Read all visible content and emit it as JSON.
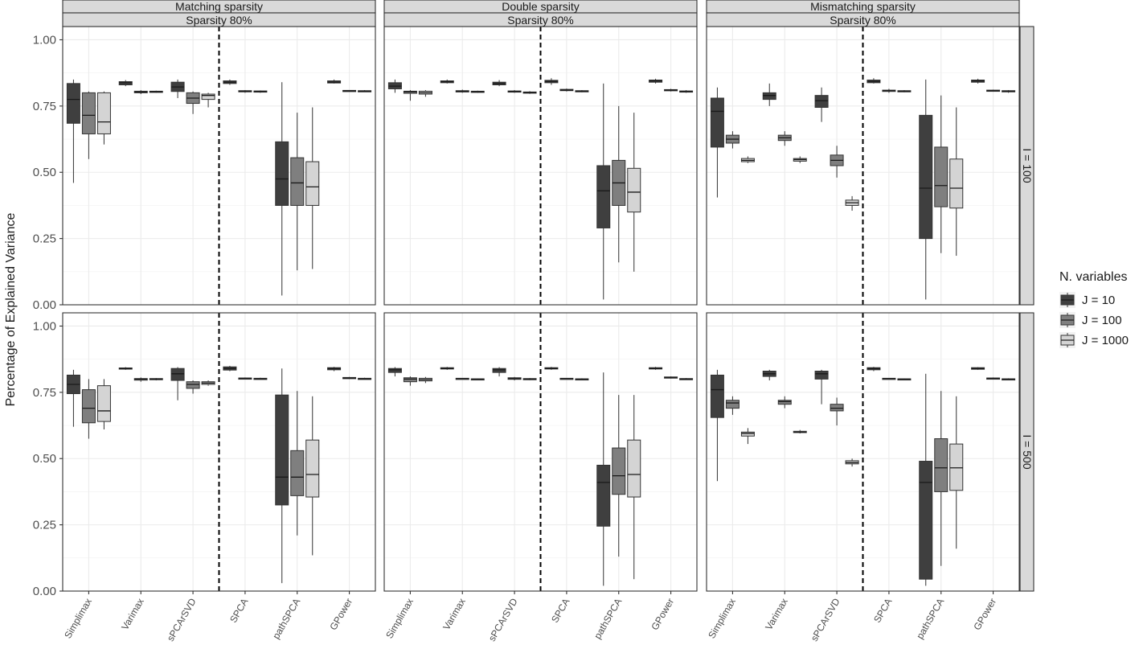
{
  "chart_data": {
    "type": "boxplot",
    "ylabel": "Percentage of Explained Variance",
    "ylim": [
      0,
      1.05
    ],
    "y_ticks": [
      "0.00",
      "0.25",
      "0.50",
      "0.75",
      "1.00"
    ],
    "y_tick_values": [
      0,
      0.25,
      0.5,
      0.75,
      1.0
    ],
    "methods": [
      "Simplimax",
      "Varimax",
      "sPCArSVD",
      "SPCA",
      "pathSPCA",
      "GPower"
    ],
    "columns": [
      {
        "label": "Matching sparsity",
        "sublabel": "Sparsity 80%"
      },
      {
        "label": "Double sparsity",
        "sublabel": "Sparsity 80%"
      },
      {
        "label": "Mismatching sparsity",
        "sublabel": "Sparsity 80%"
      }
    ],
    "rows": [
      {
        "label": "I = 100"
      },
      {
        "label": "I = 500"
      }
    ],
    "legend": {
      "title": "N. variables",
      "entries": [
        "J = 10",
        "J = 100",
        "J = 1000"
      ],
      "colors": [
        "#3f3f3f",
        "#7f7f7f",
        "#d4d4d4"
      ],
      "position": "right"
    },
    "grid": true,
    "divider": "dashed vertical line between sPCArSVD and SPCA",
    "panels": [
      {
        "row": 0,
        "col": 0,
        "boxes": [
          [
            [
              0.46,
              0.685,
              0.775,
              0.835,
              0.85
            ],
            [
              0.55,
              0.645,
              0.715,
              0.8,
              0.805
            ],
            [
              0.605,
              0.645,
              0.69,
              0.8,
              0.805
            ]
          ],
          [
            [
              0.825,
              0.83,
              0.838,
              0.842,
              0.848
            ],
            [
              0.795,
              0.8,
              0.803,
              0.806,
              0.81
            ],
            [
              0.8,
              0.802,
              0.804,
              0.806,
              0.808
            ]
          ],
          [
            [
              0.78,
              0.805,
              0.822,
              0.84,
              0.85
            ],
            [
              0.72,
              0.76,
              0.78,
              0.8,
              0.805
            ],
            [
              0.745,
              0.775,
              0.79,
              0.795,
              0.8
            ]
          ],
          [
            [
              0.83,
              0.835,
              0.84,
              0.845,
              0.85
            ],
            [
              0.8,
              0.804,
              0.806,
              0.808,
              0.81
            ],
            [
              0.8,
              0.803,
              0.805,
              0.807,
              0.809
            ]
          ],
          [
            [
              0.035,
              0.375,
              0.475,
              0.615,
              0.84
            ],
            [
              0.13,
              0.375,
              0.46,
              0.555,
              0.725
            ],
            [
              0.135,
              0.375,
              0.445,
              0.54,
              0.745
            ]
          ],
          [
            [
              0.835,
              0.837,
              0.84,
              0.845,
              0.85
            ],
            [
              0.804,
              0.806,
              0.807,
              0.809,
              0.81
            ],
            [
              0.803,
              0.805,
              0.806,
              0.808,
              0.81
            ]
          ]
        ]
      },
      {
        "row": 0,
        "col": 1,
        "boxes": [
          [
            [
              0.8,
              0.815,
              0.825,
              0.838,
              0.85
            ],
            [
              0.77,
              0.798,
              0.804,
              0.806,
              0.81
            ],
            [
              0.785,
              0.795,
              0.8,
              0.806,
              0.81
            ]
          ],
          [
            [
              0.835,
              0.838,
              0.842,
              0.845,
              0.85
            ],
            [
              0.8,
              0.803,
              0.806,
              0.808,
              0.812
            ],
            [
              0.8,
              0.802,
              0.804,
              0.806,
              0.808
            ]
          ],
          [
            [
              0.825,
              0.83,
              0.835,
              0.84,
              0.848
            ],
            [
              0.8,
              0.803,
              0.805,
              0.807,
              0.81
            ],
            [
              0.796,
              0.799,
              0.801,
              0.803,
              0.806
            ]
          ],
          [
            [
              0.83,
              0.838,
              0.843,
              0.847,
              0.855
            ],
            [
              0.805,
              0.808,
              0.81,
              0.813,
              0.816
            ],
            [
              0.802,
              0.805,
              0.806,
              0.808,
              0.81
            ]
          ],
          [
            [
              0.02,
              0.29,
              0.43,
              0.525,
              0.835
            ],
            [
              0.16,
              0.375,
              0.46,
              0.545,
              0.75
            ],
            [
              0.125,
              0.35,
              0.425,
              0.515,
              0.725
            ]
          ],
          [
            [
              0.835,
              0.84,
              0.845,
              0.848,
              0.853
            ],
            [
              0.805,
              0.808,
              0.81,
              0.812,
              0.815
            ],
            [
              0.8,
              0.803,
              0.805,
              0.807,
              0.81
            ]
          ]
        ]
      },
      {
        "row": 0,
        "col": 2,
        "boxes": [
          [
            [
              0.405,
              0.595,
              0.73,
              0.78,
              0.82
            ],
            [
              0.59,
              0.61,
              0.625,
              0.64,
              0.655
            ],
            [
              0.535,
              0.54,
              0.545,
              0.552,
              0.56
            ]
          ],
          [
            [
              0.75,
              0.775,
              0.79,
              0.8,
              0.835
            ],
            [
              0.6,
              0.62,
              0.63,
              0.64,
              0.655
            ],
            [
              0.535,
              0.542,
              0.548,
              0.552,
              0.56
            ]
          ],
          [
            [
              0.69,
              0.745,
              0.77,
              0.79,
              0.82
            ],
            [
              0.48,
              0.525,
              0.545,
              0.565,
              0.6
            ],
            [
              0.355,
              0.375,
              0.385,
              0.395,
              0.41
            ]
          ],
          [
            [
              0.835,
              0.838,
              0.843,
              0.848,
              0.855
            ],
            [
              0.8,
              0.805,
              0.808,
              0.81,
              0.815
            ],
            [
              0.802,
              0.805,
              0.806,
              0.808,
              0.81
            ]
          ],
          [
            [
              0.02,
              0.25,
              0.44,
              0.715,
              0.85
            ],
            [
              0.195,
              0.37,
              0.45,
              0.595,
              0.79
            ],
            [
              0.185,
              0.365,
              0.44,
              0.55,
              0.745
            ]
          ],
          [
            [
              0.835,
              0.84,
              0.845,
              0.848,
              0.853
            ],
            [
              0.805,
              0.807,
              0.808,
              0.81,
              0.812
            ],
            [
              0.8,
              0.804,
              0.806,
              0.808,
              0.81
            ]
          ]
        ]
      },
      {
        "row": 1,
        "col": 0,
        "boxes": [
          [
            [
              0.62,
              0.745,
              0.78,
              0.815,
              0.835
            ],
            [
              0.575,
              0.635,
              0.69,
              0.76,
              0.8
            ],
            [
              0.61,
              0.64,
              0.68,
              0.775,
              0.8
            ]
          ],
          [
            [
              0.835,
              0.838,
              0.84,
              0.842,
              0.845
            ],
            [
              0.79,
              0.796,
              0.8,
              0.802,
              0.806
            ],
            [
              0.795,
              0.798,
              0.8,
              0.802,
              0.804
            ]
          ],
          [
            [
              0.72,
              0.795,
              0.82,
              0.84,
              0.845
            ],
            [
              0.745,
              0.765,
              0.78,
              0.79,
              0.795
            ],
            [
              0.775,
              0.78,
              0.785,
              0.79,
              0.795
            ]
          ],
          [
            [
              0.83,
              0.834,
              0.84,
              0.846,
              0.85
            ],
            [
              0.8,
              0.802,
              0.803,
              0.804,
              0.806
            ],
            [
              0.798,
              0.8,
              0.801,
              0.803,
              0.805
            ]
          ],
          [
            [
              0.03,
              0.325,
              0.43,
              0.74,
              0.84
            ],
            [
              0.21,
              0.36,
              0.43,
              0.53,
              0.755
            ],
            [
              0.135,
              0.355,
              0.44,
              0.57,
              0.735
            ]
          ],
          [
            [
              0.83,
              0.835,
              0.84,
              0.843,
              0.846
            ],
            [
              0.8,
              0.803,
              0.804,
              0.806,
              0.808
            ],
            [
              0.798,
              0.8,
              0.801,
              0.803,
              0.805
            ]
          ]
        ]
      },
      {
        "row": 1,
        "col": 1,
        "boxes": [
          [
            [
              0.81,
              0.825,
              0.835,
              0.84,
              0.845
            ],
            [
              0.775,
              0.79,
              0.8,
              0.805,
              0.81
            ],
            [
              0.785,
              0.793,
              0.798,
              0.803,
              0.808
            ]
          ],
          [
            [
              0.835,
              0.838,
              0.84,
              0.843,
              0.846
            ],
            [
              0.8,
              0.801,
              0.802,
              0.803,
              0.804
            ],
            [
              0.798,
              0.799,
              0.8,
              0.801,
              0.802
            ]
          ],
          [
            [
              0.81,
              0.825,
              0.835,
              0.84,
              0.845
            ],
            [
              0.795,
              0.799,
              0.802,
              0.805,
              0.808
            ],
            [
              0.796,
              0.798,
              0.8,
              0.802,
              0.804
            ]
          ],
          [
            [
              0.835,
              0.838,
              0.84,
              0.843,
              0.846
            ],
            [
              0.8,
              0.801,
              0.802,
              0.803,
              0.804
            ],
            [
              0.797,
              0.799,
              0.8,
              0.801,
              0.803
            ]
          ],
          [
            [
              0.02,
              0.245,
              0.41,
              0.475,
              0.825
            ],
            [
              0.13,
              0.365,
              0.435,
              0.54,
              0.74
            ],
            [
              0.045,
              0.355,
              0.44,
              0.57,
              0.74
            ]
          ],
          [
            [
              0.835,
              0.838,
              0.84,
              0.843,
              0.846
            ],
            [
              0.802,
              0.804,
              0.806,
              0.808,
              0.81
            ],
            [
              0.797,
              0.799,
              0.8,
              0.802,
              0.804
            ]
          ]
        ]
      },
      {
        "row": 1,
        "col": 2,
        "boxes": [
          [
            [
              0.415,
              0.655,
              0.76,
              0.815,
              0.835
            ],
            [
              0.665,
              0.69,
              0.71,
              0.72,
              0.735
            ],
            [
              0.555,
              0.585,
              0.595,
              0.6,
              0.615
            ]
          ],
          [
            [
              0.795,
              0.81,
              0.82,
              0.83,
              0.835
            ],
            [
              0.69,
              0.705,
              0.715,
              0.72,
              0.735
            ],
            [
              0.595,
              0.598,
              0.6,
              0.603,
              0.608
            ]
          ],
          [
            [
              0.705,
              0.8,
              0.82,
              0.83,
              0.835
            ],
            [
              0.625,
              0.68,
              0.69,
              0.705,
              0.73
            ],
            [
              0.47,
              0.48,
              0.485,
              0.492,
              0.5
            ]
          ],
          [
            [
              0.83,
              0.835,
              0.84,
              0.843,
              0.846
            ],
            [
              0.8,
              0.801,
              0.802,
              0.803,
              0.804
            ],
            [
              0.798,
              0.799,
              0.8,
              0.801,
              0.802
            ]
          ],
          [
            [
              0.02,
              0.045,
              0.41,
              0.49,
              0.82
            ],
            [
              0.095,
              0.375,
              0.465,
              0.575,
              0.755
            ],
            [
              0.16,
              0.38,
              0.465,
              0.555,
              0.735
            ]
          ],
          [
            [
              0.835,
              0.837,
              0.84,
              0.843,
              0.845
            ],
            [
              0.8,
              0.802,
              0.803,
              0.804,
              0.806
            ],
            [
              0.798,
              0.799,
              0.8,
              0.801,
              0.803
            ]
          ]
        ]
      }
    ]
  }
}
